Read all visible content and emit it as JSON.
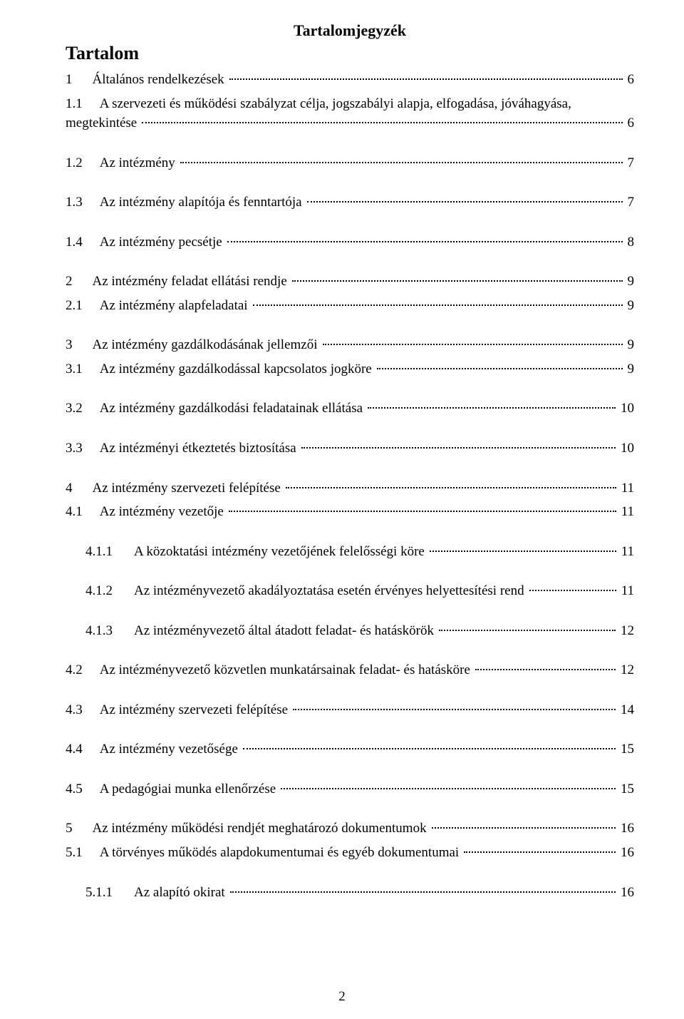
{
  "title": "Tartalomjegyzék",
  "subtitle": "Tartalom",
  "page_number": "2",
  "entries": [
    {
      "num": "1",
      "label": "Általános rendelkezések",
      "page": "6",
      "level": 1
    },
    {
      "num": "1.1",
      "label_part1": "A szervezeti és működési szabályzat célja, jogszabályi alapja, elfogadása, jóváhagyása,",
      "label_part2": "megtekintése",
      "page": "6",
      "level": 2,
      "wrap": true
    },
    {
      "num": "1.2",
      "label": "Az intézmény",
      "page": "7",
      "level": 2
    },
    {
      "num": "1.3",
      "label": "Az intézmény alapítója és fenntartója",
      "page": "7",
      "level": 2
    },
    {
      "num": "1.4",
      "label": "Az intézmény pecsétje",
      "page": "8",
      "level": 2
    },
    {
      "num": "2",
      "label": "Az intézmény feladat ellátási rendje",
      "page": "9",
      "level": 1
    },
    {
      "num": "2.1",
      "label": "Az intézmény alapfeladatai",
      "page": "9",
      "level": 2
    },
    {
      "num": "3",
      "label": "Az intézmény gazdálkodásának jellemzői",
      "page": "9",
      "level": 1
    },
    {
      "num": "3.1",
      "label": "Az intézmény gazdálkodással kapcsolatos jogköre",
      "page": "9",
      "level": 2
    },
    {
      "num": "3.2",
      "label": "Az intézmény gazdálkodási feladatainak ellátása",
      "page": "10",
      "level": 2
    },
    {
      "num": "3.3",
      "label": "Az intézményi étkeztetés biztosítása",
      "page": "10",
      "level": 2
    },
    {
      "num": "4",
      "label": "Az intézmény szervezeti felépítése",
      "page": "11",
      "level": 1
    },
    {
      "num": "4.1",
      "label": "Az intézmény vezetője",
      "page": "11",
      "level": 2
    },
    {
      "num": "4.1.1",
      "label": "A közoktatási intézmény vezetőjének felelősségi köre",
      "page": "11",
      "level": 3
    },
    {
      "num": "4.1.2",
      "label": "Az intézményvezető akadályoztatása esetén érvényes helyettesítési rend",
      "page": "11",
      "level": 3
    },
    {
      "num": "4.1.3",
      "label": "Az intézményvezető által átadott feladat- és hatáskörök",
      "page": "12",
      "level": 3
    },
    {
      "num": "4.2",
      "label": "Az intézményvezető közvetlen munkatársainak feladat- és hatásköre",
      "page": "12",
      "level": 2
    },
    {
      "num": "4.3",
      "label": "Az intézmény szervezeti felépítése",
      "page": "14",
      "level": 2
    },
    {
      "num": "4.4",
      "label": "Az intézmény vezetősége",
      "page": "15",
      "level": 2
    },
    {
      "num": "4.5",
      "label": "A pedagógiai munka ellenőrzése",
      "page": "15",
      "level": 2
    },
    {
      "num": "5",
      "label": "Az intézmény működési rendjét meghatározó dokumentumok",
      "page": "16",
      "level": 1
    },
    {
      "num": "5.1",
      "label": "A törvényes működés alapdokumentumai és egyéb dokumentumai",
      "page": "16",
      "level": 2
    },
    {
      "num": "5.1.1",
      "label": "Az alapító okirat",
      "page": "16",
      "level": 3
    }
  ]
}
